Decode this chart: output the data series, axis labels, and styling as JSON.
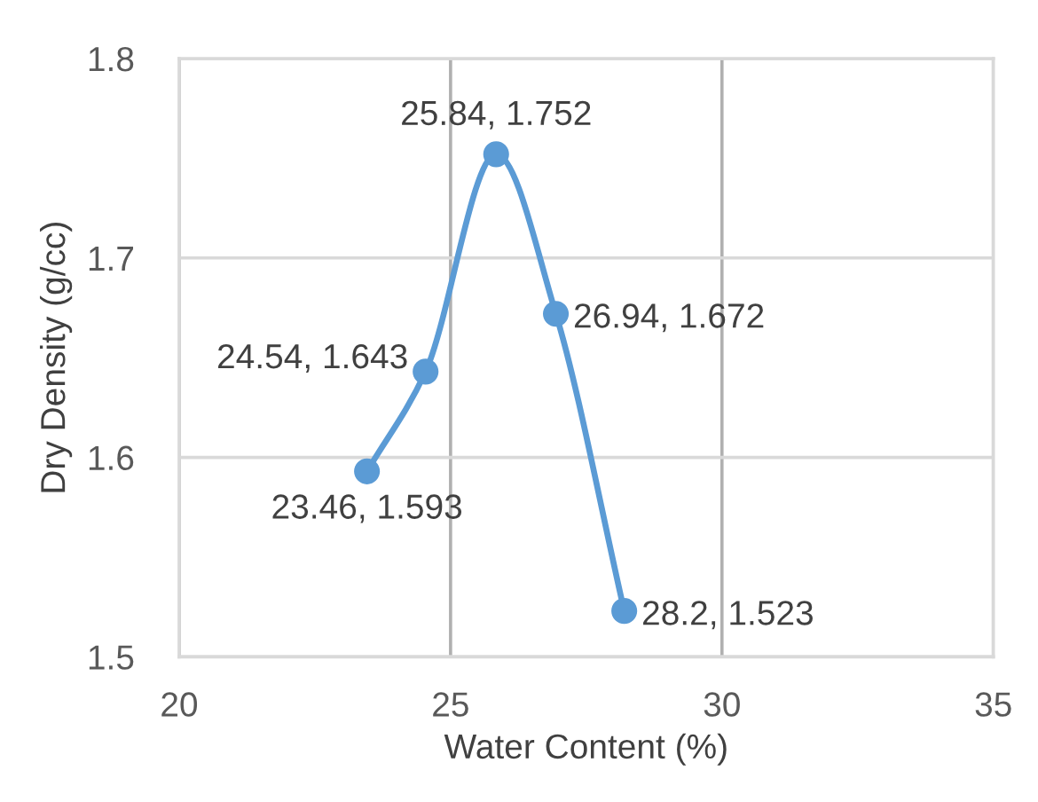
{
  "chart_data": {
    "type": "line",
    "xlabel": "Water Content (%)",
    "ylabel": "Dry Density (g/cc)",
    "x": [
      23.46,
      24.54,
      25.84,
      26.94,
      28.2
    ],
    "series": [
      {
        "color": "#5b9bd5",
        "values": [
          1.593,
          1.643,
          1.752,
          1.672,
          1.523
        ],
        "value_labels": [
          "23.46, 1.593",
          "24.54, 1.643",
          "25.84, 1.752",
          "26.94, 1.672",
          "28.2, 1.523"
        ]
      }
    ],
    "xlim": [
      20,
      35
    ],
    "xticks": [
      20,
      25,
      30,
      35
    ],
    "ylim": [
      1.5,
      1.8
    ],
    "yticks": [
      1.5,
      1.6,
      1.7,
      1.8
    ],
    "grid": true,
    "marker": "circle"
  }
}
